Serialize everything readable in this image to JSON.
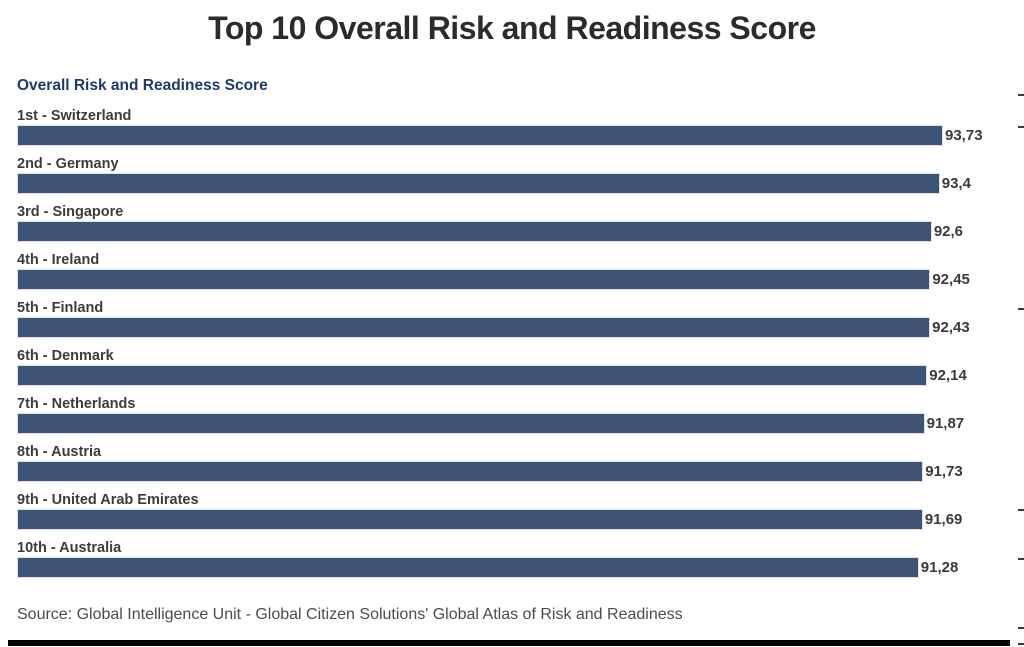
{
  "chart_data": {
    "type": "bar",
    "orientation": "horizontal",
    "title": "Top 10 Overall Risk and Readiness Score",
    "series_label": "Overall Risk and Readiness Score",
    "categories": [
      "1st - Switzerland",
      "2nd - Germany",
      "3rd - Singapore",
      "4th - Ireland",
      "5th - Finland",
      "6th - Denmark",
      "7th - Netherlands",
      "8th - Austria",
      "9th - United Arab Emirates",
      "10th - Australia"
    ],
    "values": [
      93.73,
      93.4,
      92.6,
      92.45,
      92.43,
      92.14,
      91.87,
      91.73,
      91.69,
      91.28
    ],
    "value_labels": [
      "93,73",
      "93,4",
      "92,6",
      "92,45",
      "92,43",
      "92,14",
      "91,87",
      "91,73",
      "91,69",
      "91,28"
    ],
    "decimal_separator": ",",
    "xlim": [
      0,
      93.73
    ],
    "grid": false,
    "legend": "none",
    "bar_color": "#3e5276",
    "title_color": "#2b2b2b",
    "series_label_color": "#1e3a6d",
    "source": "Source: Global Intelligence Unit - Global Citizen Solutions' Global Atlas of Risk and Readiness",
    "right_edge_ticks_y": [
      94,
      126,
      308,
      509,
      558,
      627,
      643
    ]
  }
}
